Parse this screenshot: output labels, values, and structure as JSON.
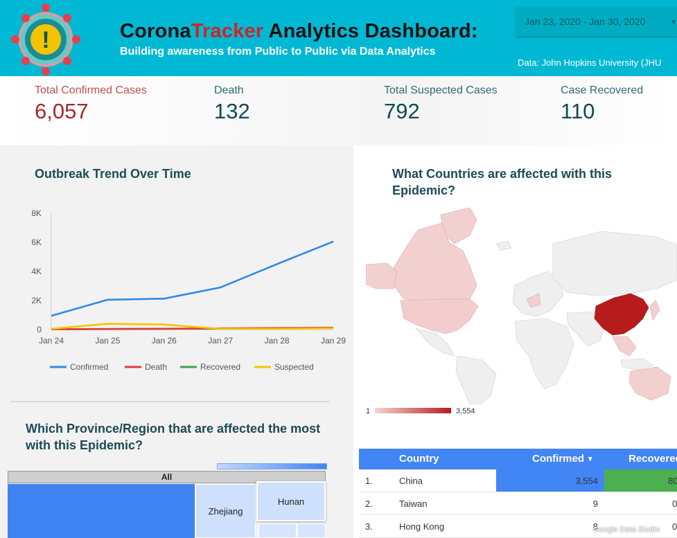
{
  "header": {
    "title_part1": "Corona",
    "title_accent": "Tracker",
    "title_part2": " Analytics Dashboard:",
    "subtitle": "Building awareness from Public to Public via Data Analytics",
    "date_range": "Jan 23, 2020 - Jan 30, 2020",
    "data_source": "Data: John Hopkins University (JHU",
    "logo_glyph": "!"
  },
  "kpis": [
    {
      "label": "Total Confirmed Cases",
      "value": "6,057",
      "label_color": "#c0504d",
      "value_color": "#a52a2a"
    },
    {
      "label": "Death",
      "value": "132",
      "label_color": "#2d6b73",
      "value_color": "#0f4a55"
    },
    {
      "label": "Total Suspected Cases",
      "value": "792",
      "label_color": "#2d6b73",
      "value_color": "#0f4a55"
    },
    {
      "label": "Case Recovered",
      "value": "110",
      "label_color": "#2d6b73",
      "value_color": "#0f4a55"
    }
  ],
  "trend": {
    "title": "Outbreak Trend Over Time"
  },
  "map": {
    "title": "What Countries are affected with this Epidemic?",
    "scale_min": "1",
    "scale_max": "3,554",
    "scale_low_color": "#f3d3d3",
    "scale_high_color": "#b71c1c"
  },
  "province": {
    "title": "Which Province/Region that are affected the most with this Epidemic?",
    "root_label": "All",
    "cells": [
      "Zhejiang",
      "Hunan"
    ]
  },
  "table": {
    "headers": [
      "Country",
      "Confirmed",
      "Recovered"
    ],
    "sort_indicator": "▾",
    "rows": [
      {
        "rank": "1.",
        "country": "China",
        "confirmed": "3,554",
        "recovered": "80",
        "confirmed_fill": 1.0,
        "recovered_fill": 1.0
      },
      {
        "rank": "2.",
        "country": "Taiwan",
        "confirmed": "9",
        "recovered": "0",
        "confirmed_fill": 0.0,
        "recovered_fill": 0.0
      },
      {
        "rank": "3.",
        "country": "Hong Kong",
        "confirmed": "8",
        "recovered": "0",
        "confirmed_fill": 0.0,
        "recovered_fill": 0.0
      }
    ]
  },
  "watermark": "Google Data Studio",
  "chart_data": {
    "type": "line",
    "title": "Outbreak Trend Over Time",
    "x": [
      "Jan 24",
      "Jan 25",
      "Jan 26",
      "Jan 27",
      "Jan 28",
      "Jan 29"
    ],
    "ylim": [
      0,
      8000
    ],
    "yticks": [
      "0",
      "2K",
      "4K",
      "6K",
      "8K"
    ],
    "ytick_values": [
      0,
      2000,
      4000,
      6000,
      8000
    ],
    "grid": false,
    "legend_position": "bottom",
    "series": [
      {
        "name": "Confirmed",
        "color": "#2d8ae6",
        "values": [
          950,
          2050,
          2130,
          2900,
          4500,
          6057
        ]
      },
      {
        "name": "Death",
        "color": "#e53935",
        "values": [
          25,
          40,
          56,
          80,
          106,
          132
        ]
      },
      {
        "name": "Recovered",
        "color": "#43a047",
        "values": [
          30,
          40,
          50,
          60,
          100,
          110
        ]
      },
      {
        "name": "Suspected",
        "color": "#f5c400",
        "values": [
          50,
          400,
          350,
          50,
          50,
          90
        ]
      }
    ]
  }
}
